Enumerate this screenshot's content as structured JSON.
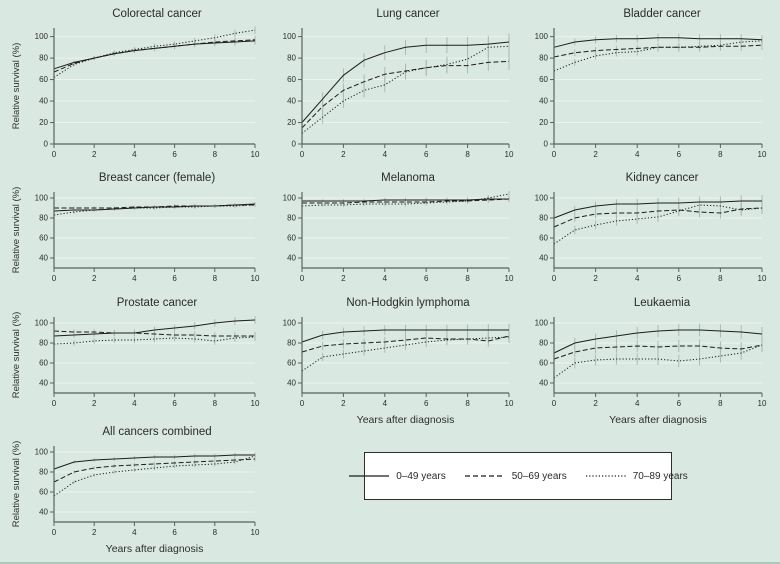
{
  "colors": {
    "background": "#d9e8e1",
    "bottom_rule": "#a9c7bb",
    "line": "#1c1c1c",
    "axis": "#55655c",
    "grid": "#eaf3ee",
    "error_bar": "#a3b6ad",
    "text": "#2e2e2e"
  },
  "figure": {
    "ylabel": "Relative survival (%)",
    "xlabel": "Years after diagnosis"
  },
  "legend": {
    "items": [
      {
        "label": "0–49 years",
        "style": "solid"
      },
      {
        "label": "50–69 years",
        "style": "dashed"
      },
      {
        "label": "70–89 years",
        "style": "dotted"
      }
    ]
  },
  "chart_data": [
    {
      "title": "Colorectal cancer",
      "type": "line",
      "x": [
        0,
        1,
        2,
        3,
        4,
        5,
        6,
        7,
        8,
        9,
        10
      ],
      "xticks": [
        0,
        2,
        4,
        6,
        8,
        10
      ],
      "yticks": [
        0,
        20,
        40,
        60,
        80,
        100
      ],
      "ylim": [
        0,
        108
      ],
      "xlim": [
        0,
        10
      ],
      "show_ylabel": true,
      "show_xlabel": false,
      "err_start": 1.5,
      "err_end": 3.5,
      "series": [
        {
          "name": "0–49 years",
          "style": "solid",
          "values": [
            70,
            76,
            80,
            84,
            87,
            89,
            91,
            93,
            94,
            95,
            96
          ]
        },
        {
          "name": "50–69 years",
          "style": "dashed",
          "values": [
            67,
            75,
            80,
            84,
            87,
            89,
            91,
            93,
            95,
            96,
            97
          ]
        },
        {
          "name": "70–89 years",
          "style": "dotted",
          "values": [
            62,
            74,
            80,
            85,
            88,
            91,
            93,
            96,
            99,
            103,
            106
          ]
        }
      ]
    },
    {
      "title": "Lung cancer",
      "type": "line",
      "x": [
        0,
        1,
        2,
        3,
        4,
        5,
        6,
        7,
        8,
        9,
        10
      ],
      "xticks": [
        0,
        2,
        4,
        6,
        8,
        10
      ],
      "yticks": [
        0,
        20,
        40,
        60,
        80,
        100
      ],
      "ylim": [
        0,
        108
      ],
      "xlim": [
        0,
        10
      ],
      "show_ylabel": false,
      "show_xlabel": false,
      "err_start": 6,
      "err_end": 8,
      "series": [
        {
          "name": "0–49 years",
          "style": "solid",
          "values": [
            20,
            42,
            64,
            78,
            85,
            90,
            92,
            92,
            92,
            93,
            95
          ]
        },
        {
          "name": "50–69 years",
          "style": "dashed",
          "values": [
            15,
            35,
            50,
            58,
            65,
            68,
            71,
            73,
            73,
            76,
            77
          ]
        },
        {
          "name": "70–89 years",
          "style": "dotted",
          "values": [
            10,
            25,
            40,
            50,
            55,
            67,
            71,
            74,
            79,
            90,
            91
          ]
        }
      ]
    },
    {
      "title": "Bladder cancer",
      "type": "line",
      "x": [
        0,
        1,
        2,
        3,
        4,
        5,
        6,
        7,
        8,
        9,
        10
      ],
      "xticks": [
        0,
        2,
        4,
        6,
        8,
        10
      ],
      "yticks": [
        0,
        20,
        40,
        60,
        80,
        100
      ],
      "ylim": [
        0,
        108
      ],
      "xlim": [
        0,
        10
      ],
      "err_start": 3,
      "err_end": 4.5,
      "show_ylabel": false,
      "show_xlabel": false,
      "series": [
        {
          "name": "0–49 years",
          "style": "solid",
          "values": [
            90,
            95,
            97,
            98,
            98,
            99,
            99,
            98,
            98,
            98,
            97
          ]
        },
        {
          "name": "50–69 years",
          "style": "dashed",
          "values": [
            81,
            85,
            87,
            88,
            89,
            90,
            90,
            90,
            91,
            91,
            92
          ]
        },
        {
          "name": "70–89 years",
          "style": "dotted",
          "values": [
            68,
            76,
            82,
            85,
            86,
            90,
            90,
            91,
            92,
            95,
            96
          ]
        }
      ]
    },
    {
      "title": "Breast cancer (female)",
      "type": "line",
      "x": [
        0,
        1,
        2,
        3,
        4,
        5,
        6,
        7,
        8,
        9,
        10
      ],
      "xticks": [
        0,
        2,
        4,
        6,
        8,
        10
      ],
      "yticks": [
        40,
        60,
        80,
        100
      ],
      "ylim": [
        30,
        106
      ],
      "xlim": [
        0,
        10
      ],
      "err_start": 1.5,
      "err_end": 2,
      "show_ylabel": true,
      "show_xlabel": false,
      "series": [
        {
          "name": "0–49 years",
          "style": "solid",
          "values": [
            87,
            88,
            88,
            89,
            90,
            91,
            91,
            92,
            92,
            93,
            94
          ]
        },
        {
          "name": "50–69 years",
          "style": "dashed",
          "values": [
            90,
            90,
            90,
            90,
            91,
            91,
            92,
            92,
            92,
            93,
            93
          ]
        },
        {
          "name": "70–89 years",
          "style": "dotted",
          "values": [
            83,
            86,
            88,
            89,
            90,
            90,
            91,
            91,
            92,
            92,
            93
          ]
        }
      ]
    },
    {
      "title": "Melanoma",
      "type": "line",
      "x": [
        0,
        1,
        2,
        3,
        4,
        5,
        6,
        7,
        8,
        9,
        10
      ],
      "xticks": [
        0,
        2,
        4,
        6,
        8,
        10
      ],
      "yticks": [
        40,
        60,
        80,
        100
      ],
      "ylim": [
        30,
        106
      ],
      "xlim": [
        0,
        10
      ],
      "err_start": 1.5,
      "err_end": 3,
      "show_ylabel": false,
      "show_xlabel": false,
      "series": [
        {
          "name": "0–49 years",
          "style": "solid",
          "values": [
            97,
            97,
            97,
            97,
            98,
            98,
            98,
            98,
            98,
            99,
            99
          ]
        },
        {
          "name": "50–69 years",
          "style": "dashed",
          "values": [
            95,
            95,
            95,
            96,
            96,
            96,
            96,
            97,
            97,
            98,
            99
          ]
        },
        {
          "name": "70–89 years",
          "style": "dotted",
          "values": [
            92,
            93,
            93,
            94,
            94,
            94,
            95,
            96,
            97,
            100,
            104
          ]
        }
      ]
    },
    {
      "title": "Kidney cancer",
      "type": "line",
      "x": [
        0,
        1,
        2,
        3,
        4,
        5,
        6,
        7,
        8,
        9,
        10
      ],
      "xticks": [
        0,
        2,
        4,
        6,
        8,
        10
      ],
      "yticks": [
        40,
        60,
        80,
        100
      ],
      "ylim": [
        30,
        106
      ],
      "xlim": [
        0,
        10
      ],
      "err_start": 4,
      "err_end": 6,
      "show_ylabel": false,
      "show_xlabel": false,
      "series": [
        {
          "name": "0–49 years",
          "style": "solid",
          "values": [
            80,
            88,
            92,
            94,
            94,
            95,
            95,
            96,
            96,
            97,
            97
          ]
        },
        {
          "name": "50–69 years",
          "style": "dashed",
          "values": [
            71,
            80,
            84,
            85,
            85,
            87,
            88,
            86,
            85,
            89,
            90
          ]
        },
        {
          "name": "70–89 years",
          "style": "dotted",
          "values": [
            54,
            68,
            73,
            77,
            79,
            81,
            87,
            93,
            92,
            88,
            90
          ]
        }
      ]
    },
    {
      "title": "Prostate cancer",
      "type": "line",
      "x": [
        0,
        1,
        2,
        3,
        4,
        5,
        6,
        7,
        8,
        9,
        10
      ],
      "xticks": [
        0,
        2,
        4,
        6,
        8,
        10
      ],
      "yticks": [
        40,
        60,
        80,
        100
      ],
      "ylim": [
        30,
        106
      ],
      "xlim": [
        0,
        10
      ],
      "err_start": 2.5,
      "err_end": 4,
      "show_ylabel": true,
      "show_xlabel": false,
      "series": [
        {
          "name": "0–49 years",
          "style": "solid",
          "values": [
            87,
            88,
            89,
            90,
            90,
            93,
            95,
            97,
            100,
            102,
            103
          ]
        },
        {
          "name": "50–69 years",
          "style": "dashed",
          "values": [
            92,
            91,
            91,
            90,
            90,
            89,
            88,
            88,
            87,
            87,
            87
          ]
        },
        {
          "name": "70–89 years",
          "style": "dotted",
          "values": [
            79,
            80,
            82,
            83,
            83,
            84,
            85,
            84,
            82,
            85,
            86
          ]
        }
      ]
    },
    {
      "title": "Non-Hodgkin lymphoma",
      "type": "line",
      "x": [
        0,
        1,
        2,
        3,
        4,
        5,
        6,
        7,
        8,
        9,
        10
      ],
      "xticks": [
        0,
        2,
        4,
        6,
        8,
        10
      ],
      "yticks": [
        40,
        60,
        80,
        100
      ],
      "ylim": [
        30,
        106
      ],
      "xlim": [
        0,
        10
      ],
      "err_start": 4,
      "err_end": 6,
      "show_ylabel": false,
      "show_xlabel": true,
      "series": [
        {
          "name": "0–49 years",
          "style": "solid",
          "values": [
            81,
            88,
            91,
            92,
            93,
            93,
            93,
            93,
            93,
            93,
            93
          ]
        },
        {
          "name": "50–69 years",
          "style": "dashed",
          "values": [
            71,
            77,
            79,
            80,
            81,
            83,
            85,
            84,
            84,
            82,
            87
          ]
        },
        {
          "name": "70–89 years",
          "style": "dotted",
          "values": [
            52,
            66,
            69,
            72,
            75,
            78,
            81,
            83,
            84,
            85,
            86
          ]
        }
      ]
    },
    {
      "title": "Leukaemia",
      "type": "line",
      "x": [
        0,
        1,
        2,
        3,
        4,
        5,
        6,
        7,
        8,
        9,
        10
      ],
      "xticks": [
        0,
        2,
        4,
        6,
        8,
        10
      ],
      "yticks": [
        40,
        60,
        80,
        100
      ],
      "ylim": [
        30,
        106
      ],
      "xlim": [
        0,
        10
      ],
      "err_start": 5,
      "err_end": 7,
      "show_ylabel": false,
      "show_xlabel": true,
      "series": [
        {
          "name": "0–49 years",
          "style": "solid",
          "values": [
            70,
            80,
            84,
            87,
            90,
            92,
            93,
            93,
            92,
            91,
            89
          ]
        },
        {
          "name": "50–69 years",
          "style": "dashed",
          "values": [
            64,
            71,
            75,
            76,
            77,
            76,
            77,
            77,
            75,
            74,
            78
          ]
        },
        {
          "name": "70–89 years",
          "style": "dotted",
          "values": [
            45,
            60,
            63,
            64,
            64,
            64,
            62,
            64,
            67,
            70,
            78
          ]
        }
      ]
    },
    {
      "title": "All cancers combined",
      "type": "line",
      "x": [
        0,
        1,
        2,
        3,
        4,
        5,
        6,
        7,
        8,
        9,
        10
      ],
      "xticks": [
        0,
        2,
        4,
        6,
        8,
        10
      ],
      "yticks": [
        40,
        60,
        80,
        100
      ],
      "ylim": [
        30,
        106
      ],
      "xlim": [
        0,
        10
      ],
      "err_start": 1.5,
      "err_end": 2.5,
      "show_ylabel": true,
      "show_xlabel": true,
      "series": [
        {
          "name": "0–49 years",
          "style": "solid",
          "values": [
            83,
            90,
            92,
            93,
            94,
            95,
            95,
            96,
            96,
            97,
            97
          ]
        },
        {
          "name": "50–69 years",
          "style": "dashed",
          "values": [
            70,
            80,
            84,
            86,
            87,
            88,
            89,
            90,
            91,
            92,
            93
          ]
        },
        {
          "name": "70–89 years",
          "style": "dotted",
          "values": [
            56,
            70,
            77,
            80,
            82,
            84,
            86,
            87,
            88,
            90,
            96
          ]
        }
      ]
    }
  ]
}
